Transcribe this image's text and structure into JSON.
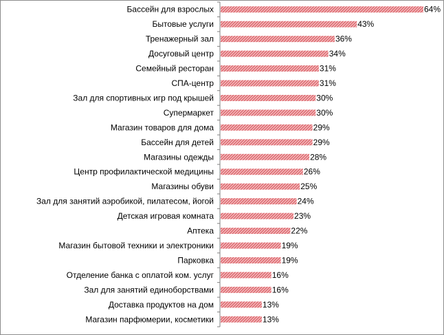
{
  "chart_data": {
    "type": "bar",
    "orientation": "horizontal",
    "categories": [
      "Бассейн для взрослых",
      "Бытовые услуги",
      "Тренажерный зал",
      "Досуговый центр",
      "Семейный ресторан",
      "СПА-центр",
      "Зал для спортивных игр под крышей",
      "Супермаркет",
      "Магазин товаров для дома",
      "Бассейн для детей",
      "Магазины одежды",
      "Центр профилактической медицины",
      "Магазины обуви",
      "Зал для занятий аэробикой, пилатесом, йогой",
      "Детская игровая комната",
      "Аптека",
      "Магазин бытовой техники и электроники",
      "Парковка",
      "Отделение банка с оплатой ком. услуг",
      "Зал для занятий единоборствами",
      "Доставка продуктов на дом",
      "Магазин парфюмерии,  косметики"
    ],
    "values": [
      64,
      43,
      36,
      34,
      31,
      31,
      30,
      30,
      29,
      29,
      28,
      26,
      25,
      24,
      23,
      22,
      19,
      19,
      16,
      16,
      13,
      13
    ],
    "value_labels": [
      "64%",
      "43%",
      "36%",
      "34%",
      "31%",
      "31%",
      "30%",
      "30%",
      "29%",
      "29%",
      "28%",
      "26%",
      "25%",
      "24%",
      "23%",
      "22%",
      "19%",
      "19%",
      "16%",
      "16%",
      "13%",
      "13%"
    ],
    "unit": "%",
    "xlim": [
      0,
      64
    ],
    "grid": false,
    "legend": false,
    "bar_color": "#f2b9bb",
    "bar_pattern_color": "#d9545c",
    "axis_color": "#808080"
  }
}
